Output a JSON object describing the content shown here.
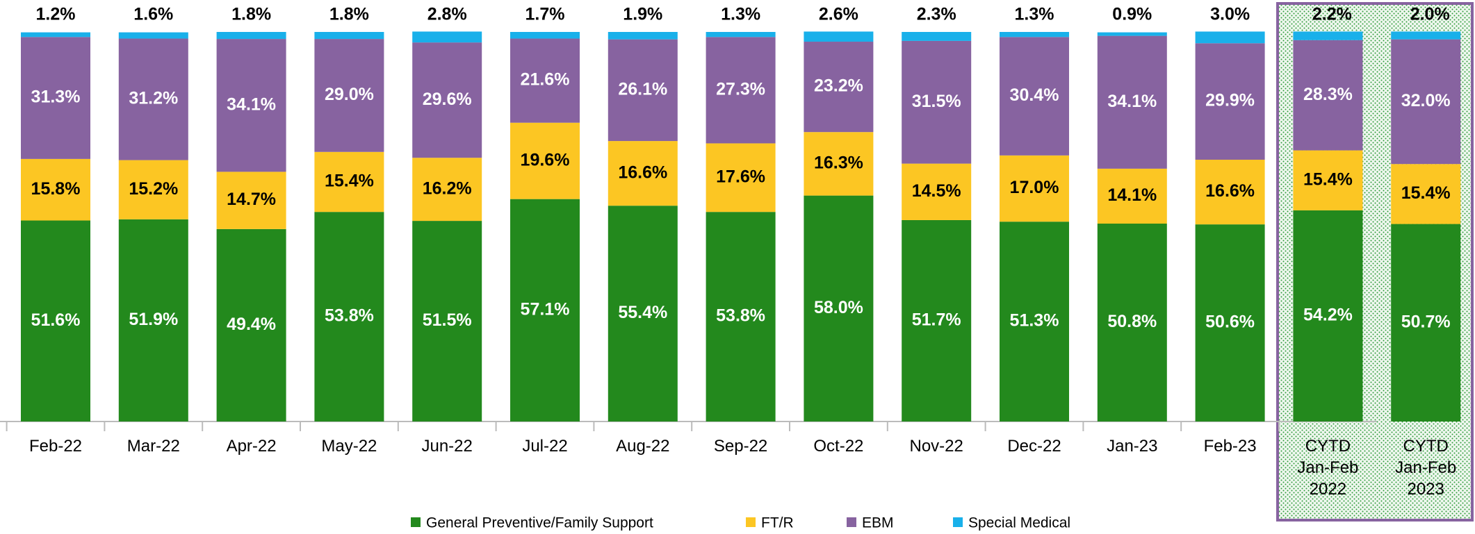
{
  "chart_data": {
    "type": "stacked_bar",
    "categories": [
      "Feb-22",
      "Mar-22",
      "Apr-22",
      "May-22",
      "Jun-22",
      "Jul-22",
      "Aug-22",
      "Sep-22",
      "Oct-22",
      "Nov-22",
      "Dec-22",
      "Jan-23",
      "Feb-23",
      "CYTD\nJan-Feb\n2022",
      "CYTD\nJan-Feb\n2023"
    ],
    "ylim": [
      0,
      100
    ],
    "series": [
      {
        "name": "General Preventive/Family Support",
        "color": "#23891d",
        "values": [
          51.6,
          51.9,
          49.4,
          53.8,
          51.5,
          57.1,
          55.4,
          53.8,
          58.0,
          51.7,
          51.3,
          50.8,
          50.6,
          54.2,
          50.7
        ],
        "value_labels": [
          "51.6%",
          "51.9%",
          "49.4%",
          "53.8%",
          "51.5%",
          "57.1%",
          "55.4%",
          "53.8%",
          "58.0%",
          "51.7%",
          "51.3%",
          "50.8%",
          "50.6%",
          "54.2%",
          "50.7%"
        ]
      },
      {
        "name": "FT/R",
        "color": "#fcc623",
        "values": [
          15.8,
          15.2,
          14.7,
          15.4,
          16.2,
          19.6,
          16.6,
          17.6,
          16.3,
          14.5,
          17.0,
          14.1,
          16.6,
          15.4,
          15.4
        ],
        "value_labels": [
          "15.8%",
          "15.2%",
          "14.7%",
          "15.4%",
          "16.2%",
          "19.6%",
          "16.6%",
          "17.6%",
          "16.3%",
          "14.5%",
          "17.0%",
          "14.1%",
          "16.6%",
          "15.4%",
          "15.4%"
        ]
      },
      {
        "name": "EBM",
        "color": "#8763a0",
        "values": [
          31.3,
          31.2,
          34.1,
          29.0,
          29.6,
          21.6,
          26.1,
          27.3,
          23.2,
          31.5,
          30.4,
          34.1,
          29.9,
          28.3,
          32.0
        ],
        "value_labels": [
          "31.3%",
          "31.2%",
          "34.1%",
          "29.0%",
          "29.6%",
          "21.6%",
          "26.1%",
          "27.3%",
          "23.2%",
          "31.5%",
          "30.4%",
          "34.1%",
          "29.9%",
          "28.3%",
          "32.0%"
        ]
      },
      {
        "name": "Special Medical",
        "color": "#19b0ea",
        "values": [
          1.2,
          1.6,
          1.8,
          1.8,
          2.8,
          1.7,
          1.9,
          1.3,
          2.6,
          2.3,
          1.3,
          0.9,
          3.0,
          2.2,
          2.0
        ],
        "value_labels": [
          "1.2%",
          "1.6%",
          "1.8%",
          "1.8%",
          "2.8%",
          "1.7%",
          "1.9%",
          "1.3%",
          "2.6%",
          "2.3%",
          "1.3%",
          "0.9%",
          "3.0%",
          "2.2%",
          "2.0%"
        ]
      }
    ]
  }
}
